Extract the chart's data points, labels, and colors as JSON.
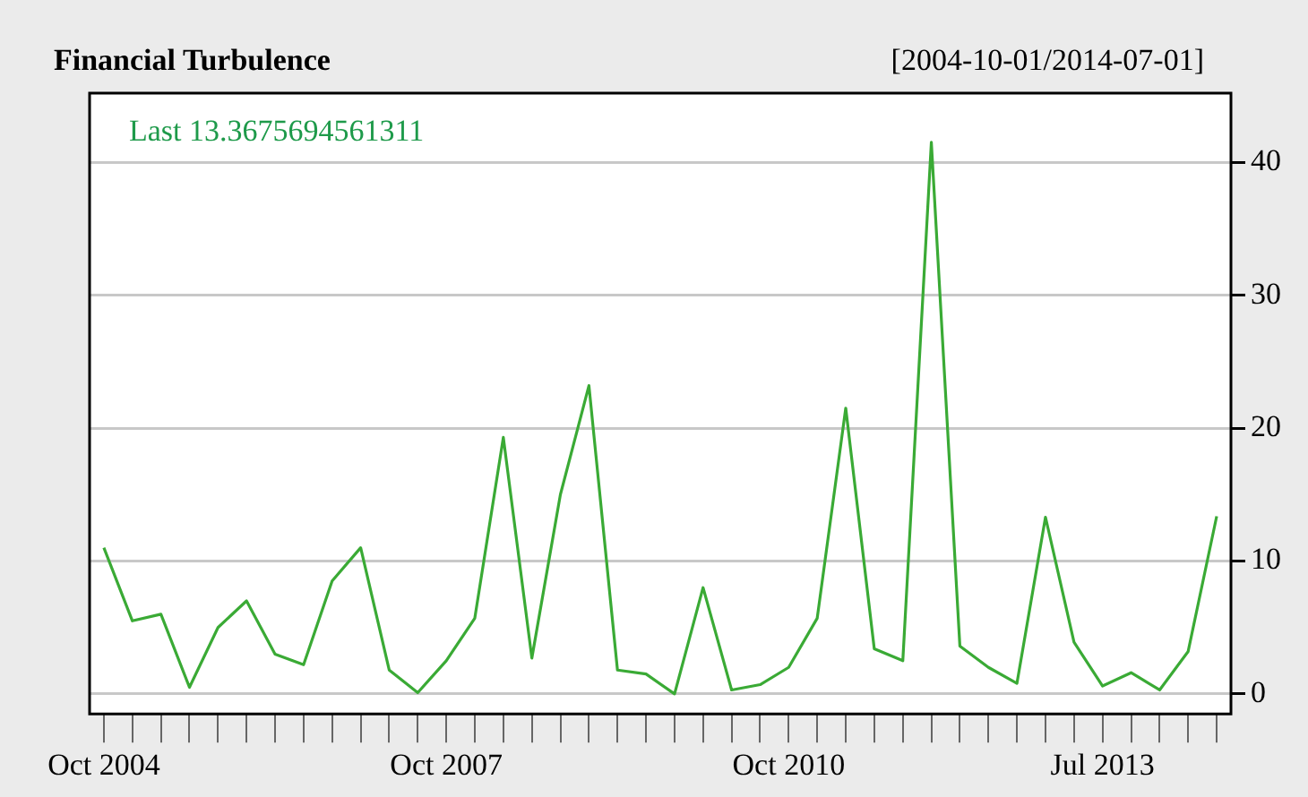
{
  "chart_data": {
    "type": "line",
    "title": "Financial Turbulence",
    "subtitle": "[2004-10-01/2014-07-01]",
    "annotations": [
      "Last 13.3675694561311"
    ],
    "categories": [
      "Oct 2004",
      null,
      null,
      null,
      null,
      null,
      null,
      null,
      null,
      null,
      null,
      null,
      "Oct 2007",
      null,
      null,
      null,
      null,
      null,
      null,
      null,
      null,
      null,
      null,
      null,
      "Oct 2010",
      null,
      null,
      null,
      null,
      null,
      null,
      null,
      null,
      null,
      null,
      "Jul 2013",
      null,
      null,
      null,
      null
    ],
    "series": [
      {
        "color": "#3aaa35",
        "values": [
          11.0,
          5.5,
          6.0,
          0.5,
          5.0,
          7.0,
          3.0,
          2.2,
          8.5,
          11.0,
          1.8,
          0.1,
          2.5,
          5.7,
          19.3,
          2.7,
          15.0,
          23.2,
          1.8,
          1.5,
          0.0,
          8.0,
          0.3,
          0.7,
          2.0,
          5.7,
          21.5,
          3.4,
          2.5,
          41.5,
          3.6,
          2.0,
          0.8,
          13.3,
          3.9,
          0.6,
          1.6,
          0.3,
          3.2,
          13.37
        ]
      }
    ],
    "ylim": [
      -1.5,
      45.2
    ],
    "yticks": [
      0,
      10,
      20,
      30,
      40
    ],
    "grid": "y",
    "legend": false,
    "marker": "none",
    "line_style": "solid"
  }
}
